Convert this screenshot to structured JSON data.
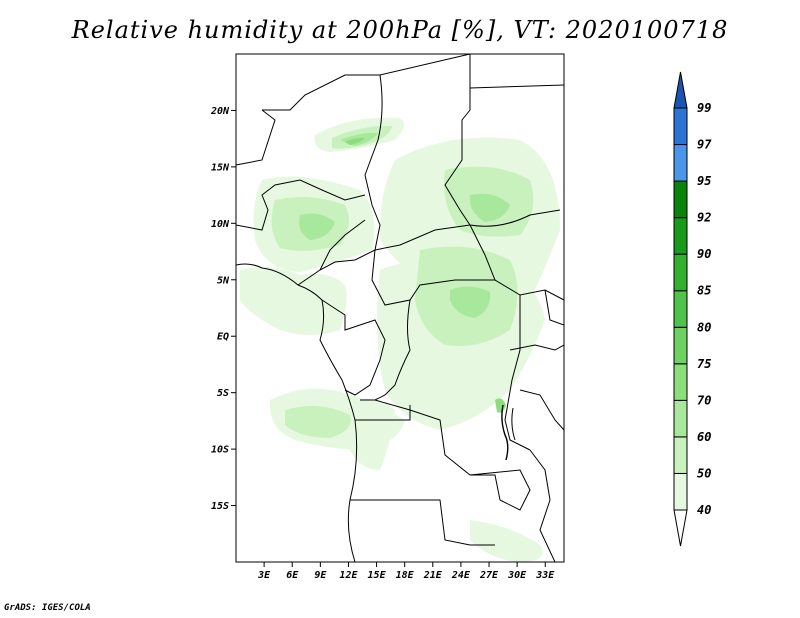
{
  "title": "Relative humidity at 200hPa [%], VT: 2020100718",
  "credit": "GrADS: IGES/COLA",
  "map": {
    "lon_range": [
      0,
      35
    ],
    "lat_range": [
      -20,
      25
    ],
    "lat_ticks": [
      {
        "value": 20,
        "label": "20N"
      },
      {
        "value": 15,
        "label": "15N"
      },
      {
        "value": 10,
        "label": "10N"
      },
      {
        "value": 5,
        "label": "5N"
      },
      {
        "value": 0,
        "label": "EQ"
      },
      {
        "value": -5,
        "label": "5S"
      },
      {
        "value": -10,
        "label": "10S"
      },
      {
        "value": -15,
        "label": "15S"
      }
    ],
    "lon_ticks": [
      {
        "value": 3,
        "label": "3E"
      },
      {
        "value": 6,
        "label": "6E"
      },
      {
        "value": 9,
        "label": "9E"
      },
      {
        "value": 12,
        "label": "12E"
      },
      {
        "value": 15,
        "label": "15E"
      },
      {
        "value": 18,
        "label": "18E"
      },
      {
        "value": 21,
        "label": "21E"
      },
      {
        "value": 24,
        "label": "24E"
      },
      {
        "value": 27,
        "label": "27E"
      },
      {
        "value": 30,
        "label": "30E"
      },
      {
        "value": 33,
        "label": "33E"
      }
    ]
  },
  "colorbar": {
    "levels": [
      "40",
      "50",
      "60",
      "70",
      "75",
      "80",
      "85",
      "90",
      "92",
      "95",
      "97",
      "99"
    ],
    "colors": [
      "#ffffff",
      "#e6f9e0",
      "#c8f1be",
      "#a8e89c",
      "#8ade7c",
      "#6ed262",
      "#50c44a",
      "#34b030",
      "#1a9a1a",
      "#0a840a",
      "#4a96e8",
      "#2c74d6",
      "#1c54b4"
    ]
  }
}
